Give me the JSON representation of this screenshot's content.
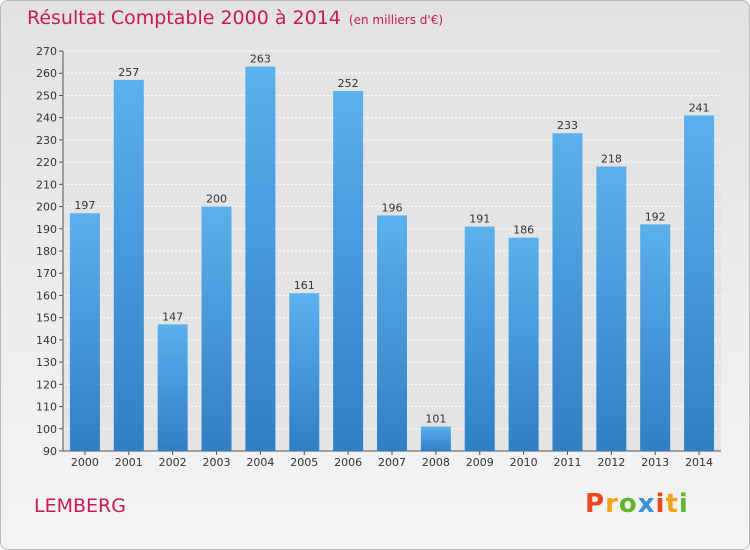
{
  "title": "Résultat Comptable 2000 à 2014",
  "subtitle": "(en milliers d'€)",
  "location": "LEMBERG",
  "logo": {
    "chars": [
      "P",
      "r",
      "o",
      "x",
      "i",
      "t",
      "i"
    ],
    "colors": [
      "#e8491d",
      "#f2a21b",
      "#62b32e",
      "#3a8fd8",
      "#e8491d",
      "#f2a21b",
      "#62b32e"
    ]
  },
  "chart_data": {
    "type": "bar",
    "title": "Résultat Comptable 2000 à 2014",
    "categories": [
      "2000",
      "2001",
      "2002",
      "2003",
      "2004",
      "2005",
      "2006",
      "2007",
      "2008",
      "2009",
      "2010",
      "2011",
      "2012",
      "2013",
      "2014"
    ],
    "values": [
      197,
      257,
      147,
      200,
      263,
      161,
      252,
      196,
      101,
      191,
      186,
      233,
      218,
      192,
      241
    ],
    "ylim": [
      90,
      270
    ],
    "yticks": [
      90,
      100,
      110,
      120,
      130,
      140,
      150,
      160,
      170,
      180,
      190,
      200,
      210,
      220,
      230,
      240,
      250,
      260,
      270
    ],
    "grid": true,
    "bar_color": "#4a9fe0"
  }
}
